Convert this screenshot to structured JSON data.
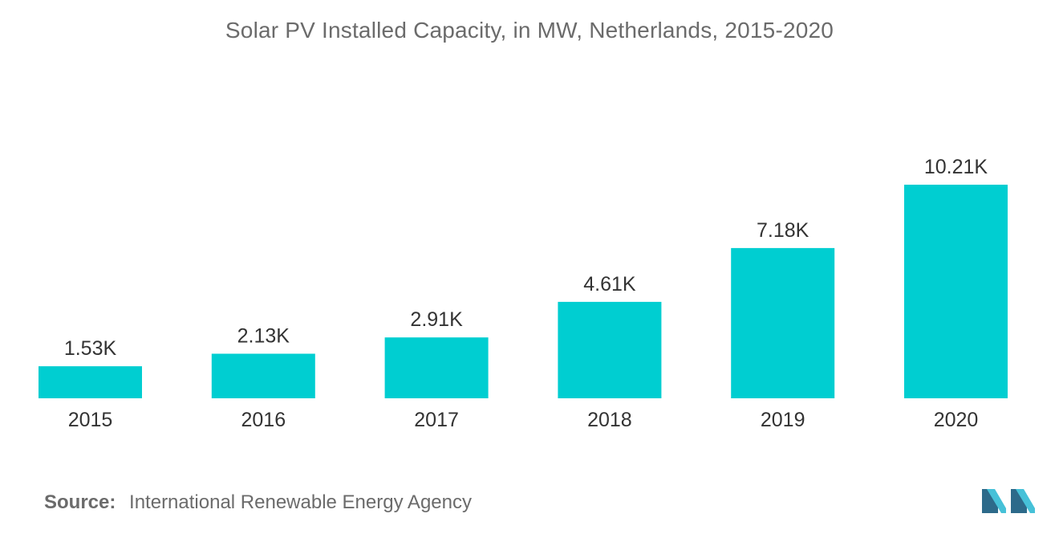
{
  "chart_data": {
    "type": "bar",
    "title": "Solar PV Installed Capacity, in MW, Netherlands, 2015-2020",
    "xlabel": "",
    "ylabel": "",
    "categories": [
      "2015",
      "2016",
      "2017",
      "2018",
      "2019",
      "2020"
    ],
    "values": [
      1530,
      2130,
      2910,
      4610,
      7180,
      10210
    ],
    "data_labels": [
      "1.53K",
      "2.13K",
      "2.91K",
      "4.61K",
      "7.18K",
      "10.21K"
    ],
    "ylim": [
      0,
      10210
    ],
    "grid": false,
    "bar_color": "#00ced1"
  },
  "source": {
    "label": "Source:",
    "text": "International Renewable Energy Agency"
  },
  "colors": {
    "title": "#6b6b6b",
    "label": "#333333",
    "logo_dark": "#2d6a8a",
    "logo_light": "#46c1d8"
  }
}
